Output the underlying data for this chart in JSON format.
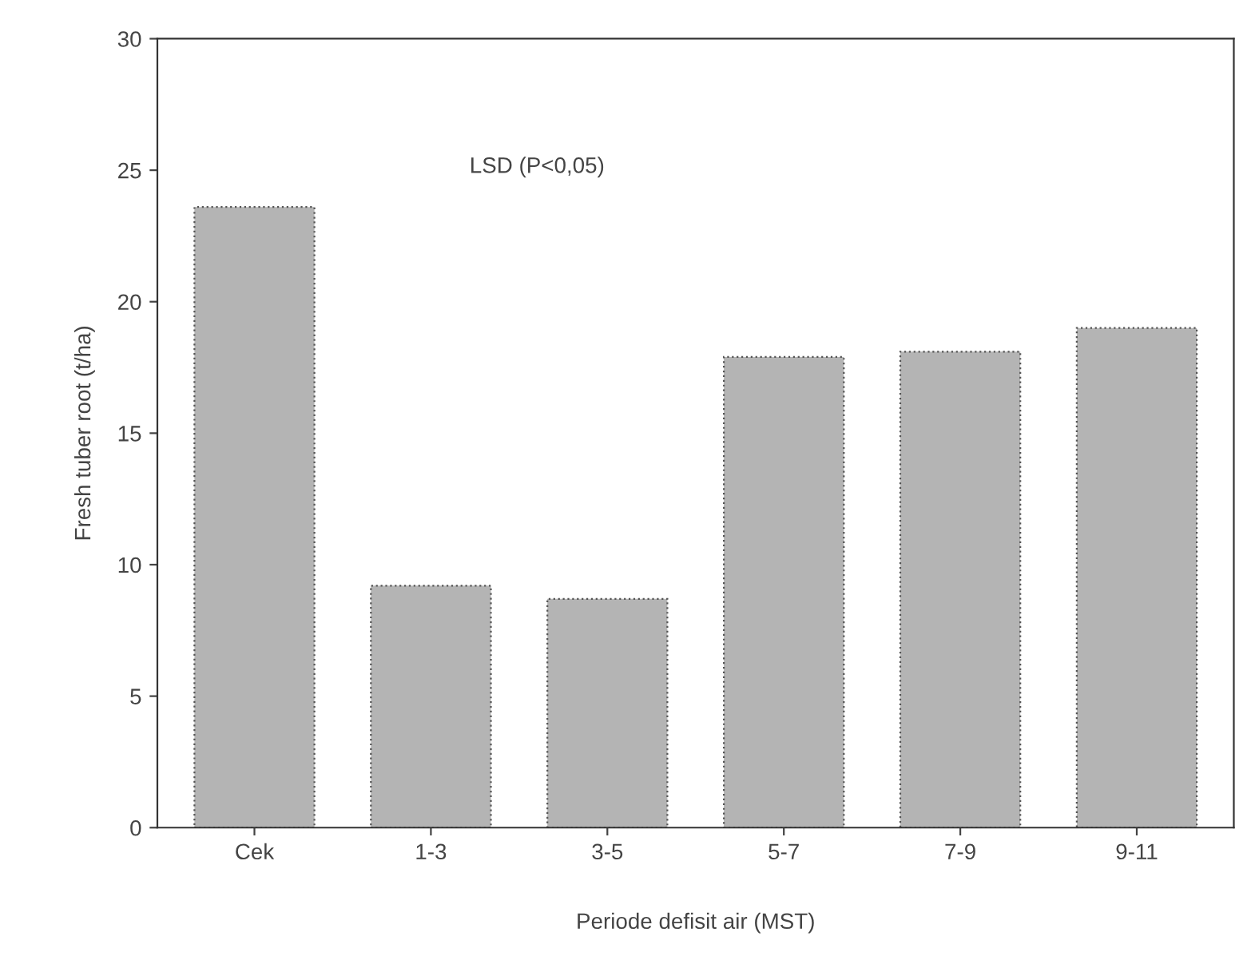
{
  "chart_data": {
    "type": "bar",
    "xlabel": "Periode defisit air (MST)",
    "ylabel": "Fresh tuber root (t/ha)",
    "categories": [
      "Cek",
      "1-3",
      "3-5",
      "5-7",
      "7-9",
      "9-11"
    ],
    "values": [
      23.6,
      9.2,
      8.7,
      17.9,
      18.1,
      19.0
    ],
    "color": "#b4b4b4",
    "ylim": [
      0,
      30
    ],
    "yticks": [
      0,
      5,
      10,
      15,
      20,
      25,
      30
    ],
    "annotations": [
      "LSD (P<0,05)"
    ],
    "grid": false,
    "legend": false
  }
}
